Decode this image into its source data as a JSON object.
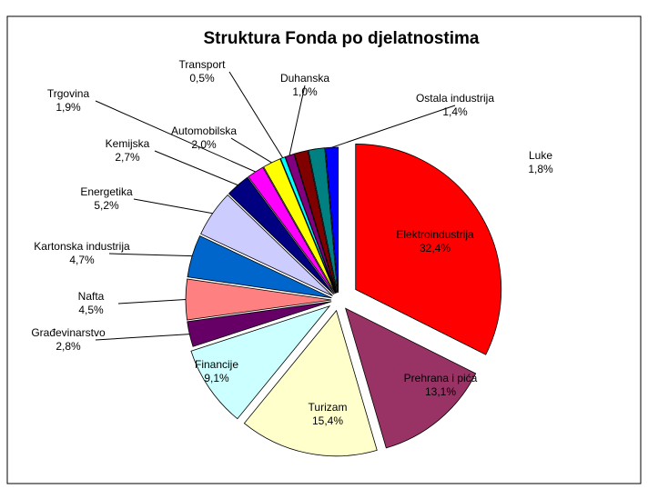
{
  "chart_data": {
    "type": "pie",
    "title": "Struktura Fonda po djelatnostima",
    "categories": [
      "Elektroindustrija",
      "Prehrana i pića",
      "Turizam",
      "Financije",
      "Građevinarstvo",
      "Nafta",
      "Kartonska industrija",
      "Energetika",
      "Kemijska",
      "Trgovina",
      "Automobilska",
      "Transport",
      "Duhanska",
      null,
      "Luke",
      "Ostala industrija"
    ],
    "values": [
      32.4,
      13.1,
      15.4,
      9.1,
      2.8,
      4.5,
      4.7,
      5.2,
      2.7,
      1.9,
      2.0,
      0.5,
      1.0,
      1.5,
      1.8,
      1.4
    ],
    "value_labels": [
      "32,4%",
      "13,1%",
      "15,4%",
      "9,1%",
      "2,8%",
      "4,5%",
      "4,7%",
      "5,2%",
      "2,7%",
      "1,9%",
      "2,0%",
      "0,5%",
      "1,0%",
      null,
      "1,8%",
      "1,4%"
    ],
    "colors": [
      "#ff0000",
      "#993366",
      "#ffffcc",
      "#ccffff",
      "#660066",
      "#ff8080",
      "#0066cc",
      "#ccccff",
      "#000080",
      "#ff00ff",
      "#ffff00",
      "#00ffff",
      "#800080",
      "#800000",
      "#008080",
      "#0000ff"
    ]
  }
}
